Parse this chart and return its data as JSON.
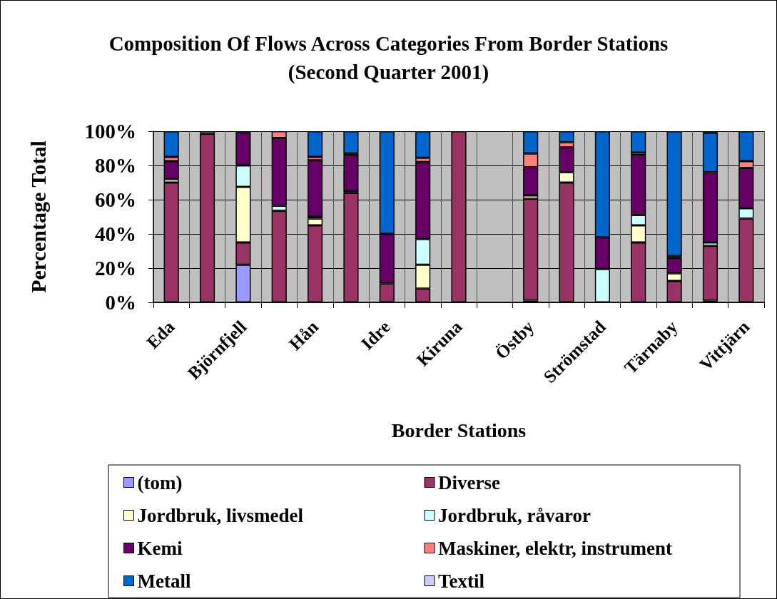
{
  "chart_data": {
    "type": "bar",
    "title": "Composition Of Flows Across Categories From Border Stations",
    "subtitle": "(Second Quarter 2001)",
    "xlabel": "Border Stations",
    "ylabel": "Percentage Total",
    "categories": [
      "Eda",
      null,
      "Björnfjell",
      null,
      "Hån",
      null,
      "Idre",
      null,
      "Kiruna",
      null,
      "Östby",
      null,
      "Strömstad",
      null,
      "Tärnaby",
      null,
      "Vittjärn"
    ],
    "stacked": true,
    "ylim": [
      0,
      100
    ],
    "yticks": [
      {
        "value": 0,
        "label": "0%"
      },
      {
        "value": 20,
        "label": "20%"
      },
      {
        "value": 40,
        "label": "40%"
      },
      {
        "value": 60,
        "label": "60%"
      },
      {
        "value": 80,
        "label": "80%"
      },
      {
        "value": 100,
        "label": "100%"
      }
    ],
    "grid": true,
    "legend": "bottom",
    "series": [
      {
        "name": "(tom)",
        "color": "#9999ff",
        "values": [
          null,
          null,
          22,
          null,
          null,
          null,
          null,
          null,
          null,
          null,
          1,
          null,
          null,
          null,
          null,
          1,
          null
        ]
      },
      {
        "name": "Diverse",
        "color": "#993366",
        "values": [
          70,
          98.5,
          13,
          53.5,
          45,
          64,
          11,
          8,
          100,
          null,
          59.5,
          70,
          null,
          35,
          12.5,
          32,
          49
        ]
      },
      {
        "name": "Jordbruk, livsmedel",
        "color": "#ffffcc",
        "values": [
          2,
          null,
          32.5,
          null,
          4,
          null,
          null,
          14,
          null,
          null,
          2,
          6,
          null,
          10,
          4.5,
          null,
          null
        ]
      },
      {
        "name": "Jordbruk, råvaror",
        "color": "#ccffff",
        "values": [
          null,
          null,
          12.5,
          3,
          1,
          1,
          null,
          15,
          null,
          null,
          null,
          null,
          19.5,
          6,
          null,
          2,
          6
        ]
      },
      {
        "name": "Kemi",
        "color": "#660066",
        "values": [
          10.5,
          null,
          19,
          39.5,
          33,
          21,
          29,
          45,
          null,
          null,
          16.5,
          14.5,
          18.5,
          35,
          9,
          41,
          23.5
        ]
      },
      {
        "name": "Maskiner, elektr, instrument",
        "color": "#ff8080",
        "values": [
          2.5,
          null,
          null,
          4,
          2,
          1,
          null,
          2.5,
          null,
          null,
          8,
          3,
          null,
          1.5,
          1,
          null,
          4
        ]
      },
      {
        "name": "Metall",
        "color": "#0066cc",
        "values": [
          15,
          null,
          null,
          null,
          15,
          13,
          60,
          15.5,
          null,
          null,
          13,
          6.5,
          62,
          12.5,
          73,
          23,
          17.5
        ]
      },
      {
        "name": "Textil",
        "color": "#ccccff",
        "values": [
          null,
          1.5,
          1,
          null,
          null,
          null,
          null,
          null,
          null,
          null,
          null,
          null,
          null,
          null,
          null,
          1,
          null
        ]
      }
    ]
  }
}
